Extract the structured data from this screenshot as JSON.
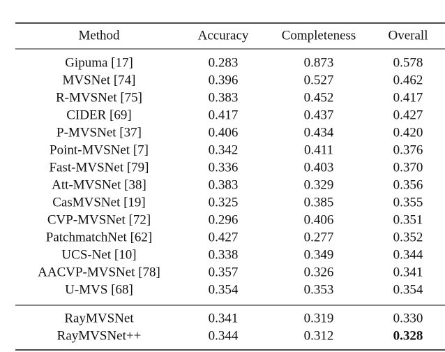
{
  "table": {
    "header": [
      "Method",
      "Accuracy",
      "Completeness",
      "Overall"
    ],
    "groups": [
      [
        [
          "Gipuma [17]",
          "0.283",
          "0.873",
          "0.578"
        ],
        [
          "MVSNet [74]",
          "0.396",
          "0.527",
          "0.462"
        ],
        [
          "R-MVSNet [75]",
          "0.383",
          "0.452",
          "0.417"
        ],
        [
          "CIDER [69]",
          "0.417",
          "0.437",
          "0.427"
        ],
        [
          "P-MVSNet [37]",
          "0.406",
          "0.434",
          "0.420"
        ],
        [
          "Point-MVSNet [7]",
          "0.342",
          "0.411",
          "0.376"
        ],
        [
          "Fast-MVSNet [79]",
          "0.336",
          "0.403",
          "0.370"
        ],
        [
          "Att-MVSNet [38]",
          "0.383",
          "0.329",
          "0.356"
        ],
        [
          "CasMVSNet [19]",
          "0.325",
          "0.385",
          "0.355"
        ],
        [
          "CVP-MVSNet [72]",
          "0.296",
          "0.406",
          "0.351"
        ],
        [
          "PatchmatchNet [62]",
          "0.427",
          "0.277",
          "0.352"
        ],
        [
          "UCS-Net [10]",
          "0.338",
          "0.349",
          "0.344"
        ],
        [
          "AACVP-MVSNet [78]",
          "0.357",
          "0.326",
          "0.341"
        ],
        [
          "U-MVS [68]",
          "0.354",
          "0.353",
          "0.354"
        ]
      ],
      [
        [
          "RayMVSNet",
          "0.341",
          "0.319",
          "0.330"
        ],
        [
          "RayMVSNet++",
          "0.344",
          "0.312",
          "0.328"
        ]
      ]
    ]
  }
}
